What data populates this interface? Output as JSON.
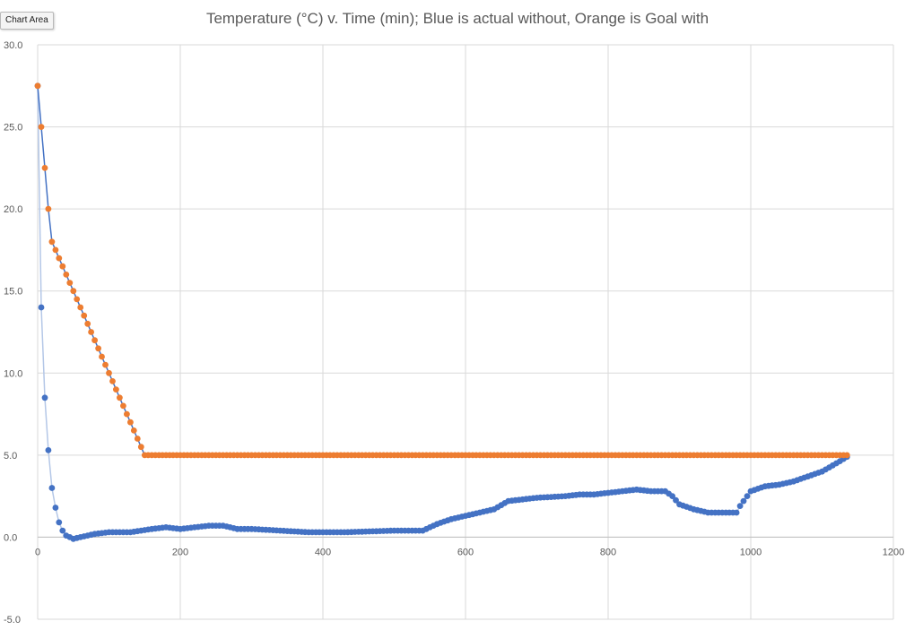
{
  "chart_area_tooltip": "Chart Area",
  "chart_data": {
    "type": "scatter",
    "title": "Temperature (°C) v. Time (min); Blue is actual without, Orange is Goal with",
    "xlim": [
      0,
      1200
    ],
    "ylim": [
      -5,
      30
    ],
    "x_ticks": [
      0,
      200,
      400,
      600,
      800,
      1000,
      1200
    ],
    "y_ticks": [
      -5,
      0,
      5,
      10,
      15,
      20,
      25,
      30
    ],
    "y_tick_decimals": 1,
    "grid": true,
    "legend": "none",
    "colors": {
      "blue": "#4472c4",
      "blue_line": "#b4c7e7",
      "orange": "#ed7d31",
      "orange_line": "#4472c4",
      "grid": "#d9d9d9"
    },
    "series": [
      {
        "color": "#4472c4",
        "point_step": 5,
        "x": [
          0,
          5,
          10,
          15,
          20,
          25,
          30,
          35,
          40,
          45,
          50,
          60,
          80,
          100,
          130,
          160,
          180,
          200,
          240,
          260,
          280,
          300,
          340,
          380,
          430,
          500,
          540,
          560,
          580,
          600,
          620,
          640,
          660,
          680,
          700,
          740,
          760,
          780,
          800,
          820,
          840,
          860,
          880,
          890,
          900,
          920,
          940,
          980,
          985,
          1000,
          1020,
          1040,
          1060,
          1080,
          1100,
          1120,
          1135
        ],
        "y": [
          27.5,
          14.0,
          8.5,
          5.3,
          3.0,
          1.8,
          0.9,
          0.4,
          0.1,
          0.0,
          -0.1,
          0.0,
          0.2,
          0.3,
          0.3,
          0.5,
          0.6,
          0.5,
          0.7,
          0.7,
          0.5,
          0.5,
          0.4,
          0.3,
          0.3,
          0.4,
          0.4,
          0.8,
          1.1,
          1.3,
          1.5,
          1.7,
          2.2,
          2.3,
          2.4,
          2.5,
          2.6,
          2.6,
          2.7,
          2.8,
          2.9,
          2.8,
          2.8,
          2.5,
          2.0,
          1.7,
          1.5,
          1.5,
          1.9,
          2.8,
          3.1,
          3.2,
          3.4,
          3.7,
          4.0,
          4.5,
          4.9
        ]
      },
      {
        "color": "#ed7d31",
        "point_step": 5,
        "x": [
          0,
          5,
          10,
          15,
          20,
          150,
          1135
        ],
        "y": [
          27.5,
          25.0,
          22.5,
          20.0,
          18.0,
          5.0,
          5.0
        ]
      }
    ]
  }
}
